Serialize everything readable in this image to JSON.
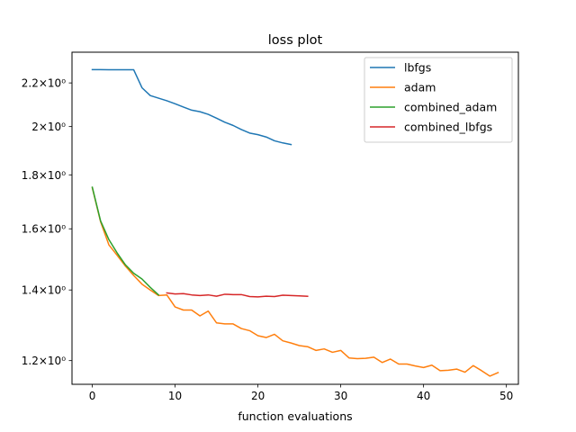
{
  "chart_data": {
    "type": "line",
    "title": "loss plot",
    "xlabel": "function evaluations",
    "ylabel": "",
    "yscale": "log",
    "xlim": [
      -2.45,
      51.45
    ],
    "ylim": [
      1.1395,
      2.3526
    ],
    "grid": false,
    "legend_position": "top-right",
    "x_ticks": [
      0,
      10,
      20,
      30,
      40,
      50
    ],
    "y_ticks": [
      {
        "value": 1.2,
        "label": "1.2×10⁰"
      },
      {
        "value": 1.4,
        "label": "1.4×10⁰"
      },
      {
        "value": 1.6,
        "label": "1.6×10⁰"
      },
      {
        "value": 1.8,
        "label": "1.8×10⁰"
      },
      {
        "value": 2.0,
        "label": "2×10⁰"
      },
      {
        "value": 2.2,
        "label": "2.2×10⁰"
      }
    ],
    "series": [
      {
        "name": "lbfgs",
        "color": "#1f77b4",
        "x": [
          0,
          1,
          2,
          3,
          4,
          5,
          6,
          7,
          8,
          9,
          10,
          11,
          12,
          13,
          14,
          15,
          16,
          17,
          18,
          19,
          20,
          21,
          22,
          23,
          24
        ],
        "y": [
          2.265,
          2.265,
          2.264,
          2.264,
          2.264,
          2.264,
          2.177,
          2.14,
          2.128,
          2.116,
          2.102,
          2.087,
          2.073,
          2.066,
          2.054,
          2.037,
          2.019,
          2.005,
          1.987,
          1.972,
          1.965,
          1.955,
          1.939,
          1.93,
          1.923
        ]
      },
      {
        "name": "adam",
        "color": "#ff7f0e",
        "x": [
          0,
          1,
          2,
          3,
          4,
          5,
          6,
          7,
          8,
          9,
          10,
          11,
          12,
          13,
          14,
          15,
          16,
          17,
          18,
          19,
          20,
          21,
          22,
          23,
          24,
          25,
          26,
          27,
          28,
          29,
          30,
          31,
          32,
          33,
          34,
          35,
          36,
          37,
          38,
          39,
          40,
          41,
          42,
          43,
          44,
          45,
          46,
          47,
          48,
          49
        ],
        "y": [
          1.75,
          1.625,
          1.545,
          1.51,
          1.475,
          1.445,
          1.418,
          1.4,
          1.383,
          1.385,
          1.349,
          1.34,
          1.34,
          1.323,
          1.337,
          1.303,
          1.3,
          1.3,
          1.287,
          1.281,
          1.267,
          1.262,
          1.271,
          1.253,
          1.247,
          1.24,
          1.237,
          1.227,
          1.231,
          1.222,
          1.227,
          1.207,
          1.205,
          1.206,
          1.209,
          1.195,
          1.204,
          1.191,
          1.191,
          1.186,
          1.182,
          1.188,
          1.174,
          1.175,
          1.178,
          1.17,
          1.187,
          1.174,
          1.16,
          1.169
        ]
      },
      {
        "name": "combined_adam",
        "color": "#2ca02c",
        "x": [
          0,
          1,
          2,
          3,
          4,
          5,
          6,
          7,
          8
        ],
        "y": [
          1.752,
          1.628,
          1.563,
          1.518,
          1.479,
          1.452,
          1.434,
          1.408,
          1.385
        ]
      },
      {
        "name": "combined_lbfgs",
        "color": "#d62728",
        "x": [
          9,
          10,
          11,
          12,
          13,
          14,
          15,
          16,
          17,
          18,
          19,
          20,
          21,
          22,
          23,
          24,
          25,
          26
        ],
        "y": [
          1.391,
          1.388,
          1.389,
          1.385,
          1.383,
          1.385,
          1.381,
          1.387,
          1.386,
          1.386,
          1.38,
          1.379,
          1.381,
          1.38,
          1.384,
          1.383,
          1.382,
          1.381
        ]
      }
    ]
  }
}
